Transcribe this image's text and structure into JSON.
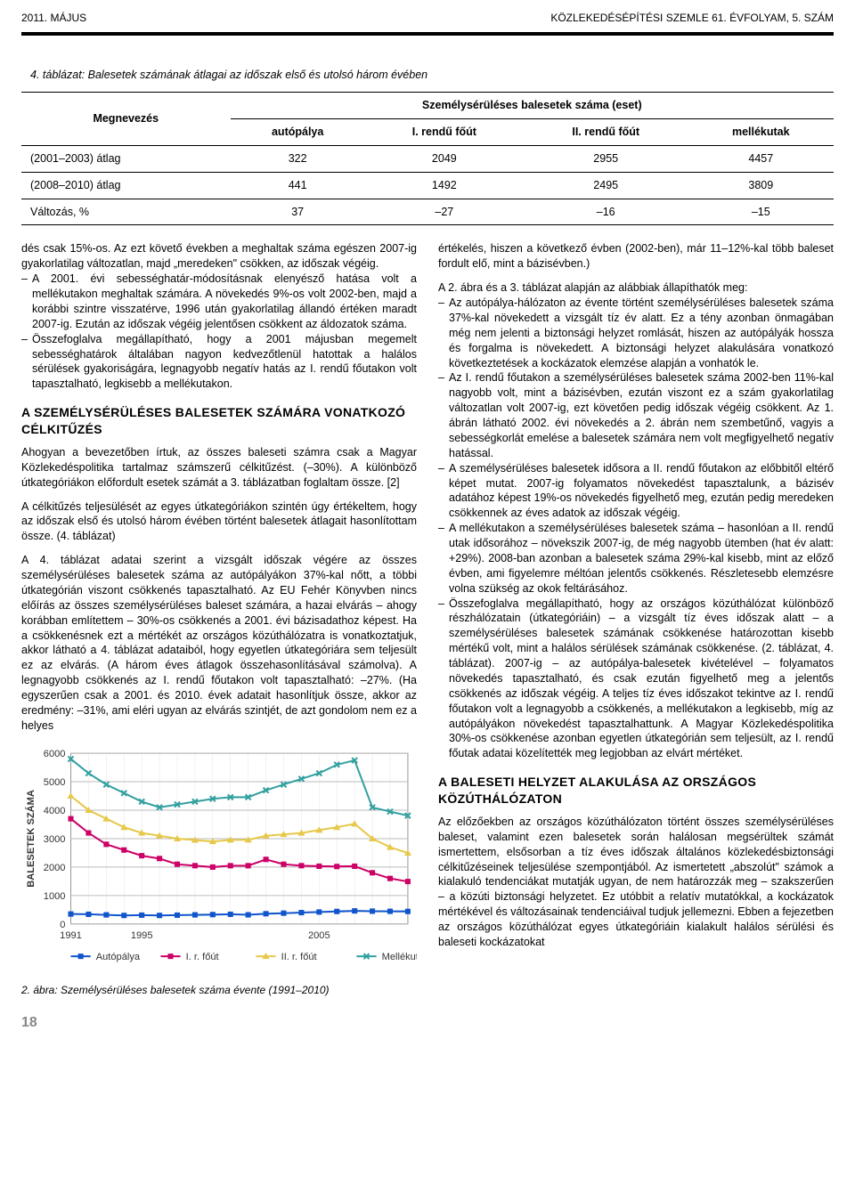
{
  "header": {
    "left": "2011. MÁJUS",
    "right": "KÖZLEKEDÉSÉPÍTÉSI SZEMLE 61. ÉVFOLYAM, 5. SZÁM"
  },
  "table4": {
    "caption": "4. táblázat: Balesetek számának átlagai az időszak első és utolsó három évében",
    "megnevezes_label": "Megnevezés",
    "group_header": "Személysérüléses balesetek száma (eset)",
    "columns": [
      "autópálya",
      "I. rendű főút",
      "II. rendű főút",
      "mellékutak"
    ],
    "rows": [
      {
        "label": "(2001–2003) átlag",
        "values": [
          "322",
          "2049",
          "2955",
          "4457"
        ]
      },
      {
        "label": "(2008–2010) átlag",
        "values": [
          "441",
          "1492",
          "2495",
          "3809"
        ]
      },
      {
        "label": "Változás, %",
        "values": [
          "37",
          "–27",
          "–16",
          "–15"
        ]
      }
    ]
  },
  "leftcol": {
    "para_intro": "dés csak 15%-os. Az ezt követő években a meghaltak száma egészen 2007-ig gyakorlatilag változatlan, majd „meredeken\" csökken, az időszak végéig.",
    "bullet_a2001": "A 2001. évi sebességhatár-módosításnak elenyésző hatása volt a mellékutakon meghaltak számára. A növekedés 9%-os volt 2002-ben, majd a korábbi szintre visszatérve, 1996 után gyakorlatilag állandó értéken maradt 2007-ig. Ezután az időszak végéig jelentősen csökkent az áldozatok száma.",
    "bullet_ossz": "Összefoglalva megállapítható, hogy a 2001 májusban megemelt sebességhatárok általában nagyon kedvezőtlenül hatottak a halálos sérülések gyakoriságára, legnagyobb negatív hatás az I. rendű főutakon volt tapasztalható, legkisebb a mellékutakon.",
    "h2_a": "A SZEMÉLYSÉRÜLÉSES BALESETEK SZÁMÁRA VONATKOZÓ CÉLKITŰZÉS",
    "p_a1": "Ahogyan a bevezetőben írtuk, az összes baleseti számra csak a Magyar Közlekedéspolitika tartalmaz számszerű célkitűzést. (–30%). A különböző útkategóriákon előfordult esetek számát a 3. táblázatban foglaltam össze. [2]",
    "p_a2": "A célkitűzés teljesülését az egyes útkategóriákon szintén úgy értékeltem, hogy az időszak első és utolsó három évében történt balesetek átlagait hasonlítottam össze. (4. táblázat)",
    "p_a3": "A 4. táblázat adatai szerint a vizsgált időszak végére az összes személysérüléses balesetek száma az autópályákon 37%-kal nőtt, a többi útkategórián viszont csökkenés tapasztalható. Az EU Fehér Könyvben nincs előírás az összes személysérüléses baleset számára, a hazai elvárás – ahogy korábban említettem – 30%-os csökkenés a 2001. évi bázisadathoz képest. Ha a csökkenésnek ezt a mértékét az országos közúthálózatra is vonatkoztatjuk, akkor látható a 4. táblázat adataiból, hogy egyetlen útkategóriára sem teljesült ez az elvárás. (A három éves átlagok összehasonlításával számolva). A legnagyobb csökkenés az I. rendű főutakon volt tapasztalható: –27%. (Ha egyszerűen csak a 2001. és 2010. évek adatait hasonlítjuk össze, akkor az eredmény: –31%, ami eléri ugyan az elvárás szintjét, de azt gondolom nem ez a helyes"
  },
  "rightcol": {
    "p_r1": "értékelés, hiszen a következő évben (2002-ben), már 11–12%-kal több baleset fordult elő, mint a bázisévben.)",
    "p_r2": "A 2. ábra és a 3. táblázat alapján az alábbiak állapíthatók meg:",
    "b_r1": "Az autópálya-hálózaton az évente történt személysérüléses balesetek száma 37%-kal növekedett a vizsgált tíz év alatt. Ez a tény azonban önmagában még nem jelenti a biztonsági helyzet romlását, hiszen az autópályák hossza és forgalma is növekedett. A biztonsági helyzet alakulására vonatkozó következtetések a kockázatok elemzése alapján a vonhatók le.",
    "b_r2": "Az I. rendű főutakon a személysérüléses balesetek száma 2002-ben 11%-kal nagyobb volt, mint a bázisévben, ezután viszont ez a szám gyakorlatilag változatlan volt 2007-ig, ezt követően pedig időszak végéig csökkent. Az 1. ábrán látható 2002. évi növekedés a 2. ábrán nem szembetűnő, vagyis a sebességkorlát emelése a balesetek számára nem volt megfigyelhető negatív hatással.",
    "b_r3": "A személysérüléses balesetek idősora a II. rendű főutakon az előbbitől eltérő képet mutat. 2007-ig folyamatos növekedést tapasztalunk, a bázisév adatához képest 19%-os növekedés figyelhető meg, ezután pedig meredeken csökkennek az éves adatok az időszak végéig.",
    "b_r4": "A mellékutakon a személysérüléses balesetek száma – hasonlóan a II. rendű utak idősorához – növekszik 2007-ig, de még nagyobb ütemben (hat év alatt: +29%). 2008-ban azonban a balesetek száma 29%-kal kisebb, mint az előző évben, ami figyelemre méltóan jelentős csökkenés. Részletesebb elemzésre volna szükség az okok feltárásához.",
    "b_r5": "Összefoglalva megállapítható, hogy az országos közúthálózat különböző részhálózatain (útkategóriáin) – a vizsgált tíz éves időszak alatt – a személysérüléses balesetek számának csökkenése határozottan kisebb mértékű volt, mint a halálos sérülések számának csökkenése. (2. táblázat, 4. táblázat). 2007-ig – az autópálya-balesetek kivételével – folyamatos növekedés tapasztalható, és csak ezután figyelhető meg a jelentős csökkenés az időszak végéig. A teljes tíz éves időszakot tekintve az I. rendű főutakon volt a legnagyobb a csökkenés, a mellékutakon a legkisebb, míg az autópályákon növekedést tapasztalhattunk. A Magyar Közlekedéspolitika 30%-os csökkenése azonban egyetlen útkategórián sem teljesült, az I. rendű főutak adatai közelítették meg legjobban az elvárt mértéket.",
    "h2_b": "A BALESETI HELYZET ALAKULÁSA AZ ORSZÁGOS KÖZÚTHÁLÓZATON",
    "p_b1": "Az előzőekben az országos közúthálózaton történt összes személysérüléses baleset, valamint ezen balesetek során halálosan megsérültek számát ismertettem, elsősorban a tíz éves időszak általános közlekedésbiztonsági célkitűzéseinek teljesülése szempontjából. Az ismertetett „abszolút\" számok a kialakuló tendenciákat mutatják ugyan, de nem határozzák meg – szakszerűen – a közúti biztonsági helyzetet. Ez utóbbit a relatív mutatókkal, a kockázatok mértékével és változásainak tendenciáival tudjuk jellemezni. Ebben a fejezetben az országos közúthálózat egyes útkategóriáin kialakult halálos sérülési és baleseti kockázatokat"
  },
  "chart2": {
    "caption": "2. ábra: Személysérüléses balesetek száma évente (1991–2010)",
    "ylabel": "BALESETEK SZÁMA",
    "ylim": [
      0,
      6000
    ],
    "ytick_step": 1000,
    "x_ticks": [
      "1991",
      "1995",
      "",
      "2005"
    ],
    "x_positions": [
      0,
      4,
      9,
      14
    ],
    "x_count": 20,
    "background": "#ffffff",
    "grid_color": "#cccccc",
    "series": [
      {
        "name": "Autópálya",
        "color": "#1155cc",
        "marker": "square",
        "values": [
          350,
          340,
          320,
          300,
          310,
          300,
          310,
          320,
          330,
          340,
          322,
          360,
          380,
          400,
          420,
          440,
          460,
          450,
          445,
          441
        ]
      },
      {
        "name": "I. r. főút",
        "color": "#cc0066",
        "marker": "square",
        "values": [
          3700,
          3200,
          2800,
          2600,
          2400,
          2300,
          2100,
          2050,
          2000,
          2049,
          2049,
          2270,
          2100,
          2050,
          2030,
          2020,
          2030,
          1800,
          1600,
          1492
        ]
      },
      {
        "name": "II. r. főút",
        "color": "#e6c84a",
        "marker": "triangle",
        "values": [
          4500,
          4000,
          3700,
          3400,
          3200,
          3100,
          3000,
          2950,
          2900,
          2955,
          2955,
          3100,
          3150,
          3200,
          3300,
          3400,
          3520,
          3000,
          2700,
          2495
        ]
      },
      {
        "name": "Mellékutak",
        "color": "#33a0a0",
        "marker": "cross",
        "values": [
          5800,
          5300,
          4900,
          4600,
          4300,
          4100,
          4200,
          4300,
          4400,
          4457,
          4457,
          4700,
          4900,
          5100,
          5300,
          5600,
          5750,
          4100,
          3950,
          3809
        ]
      }
    ],
    "legend": [
      "Autópálya",
      "I. r. főút",
      "II. r. főút",
      "Mellékutak"
    ]
  },
  "page_number": "18"
}
